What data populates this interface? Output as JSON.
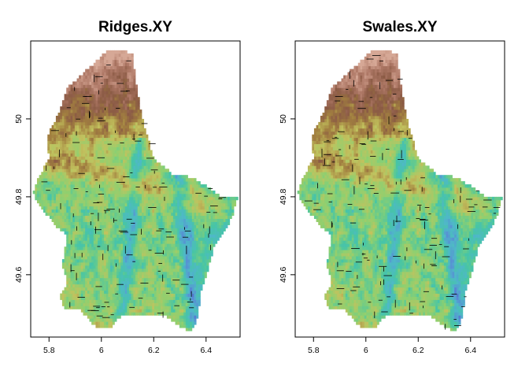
{
  "chart_data": [
    {
      "type": "heatmap",
      "title": "Ridges.XY",
      "xlabel": "",
      "ylabel": "",
      "xlim": [
        5.73,
        6.53
      ],
      "ylim": [
        49.44,
        50.2
      ],
      "xticks": [
        "5.8",
        "6",
        "6.2",
        "6.4"
      ],
      "xtick_values": [
        5.8,
        6.0,
        6.2,
        6.4
      ],
      "yticks": [
        "49.6",
        "49.8",
        "50"
      ],
      "ytick_values": [
        49.6,
        49.8,
        50.0
      ],
      "colormap": [
        "#3f4fb8",
        "#5a86d6",
        "#4fb8c8",
        "#47c5a5",
        "#8ed070",
        "#c2c25e",
        "#a28040",
        "#8a5a44",
        "#b07a68",
        "#d6a896"
      ],
      "overlay": "short black ridge-line segments",
      "region_outline": [
        [
          6.03,
          50.18
        ],
        [
          6.12,
          50.17
        ],
        [
          6.13,
          50.1
        ],
        [
          6.16,
          49.99
        ],
        [
          6.2,
          49.9
        ],
        [
          6.27,
          49.86
        ],
        [
          6.35,
          49.85
        ],
        [
          6.46,
          49.8
        ],
        [
          6.52,
          49.8
        ],
        [
          6.5,
          49.75
        ],
        [
          6.47,
          49.71
        ],
        [
          6.43,
          49.67
        ],
        [
          6.41,
          49.62
        ],
        [
          6.38,
          49.56
        ],
        [
          6.37,
          49.5
        ],
        [
          6.35,
          49.46
        ],
        [
          6.32,
          49.46
        ],
        [
          6.23,
          49.5
        ],
        [
          6.14,
          49.5
        ],
        [
          6.08,
          49.5
        ],
        [
          6.03,
          49.46
        ],
        [
          5.97,
          49.47
        ],
        [
          5.92,
          49.51
        ],
        [
          5.86,
          49.51
        ],
        [
          5.84,
          49.55
        ],
        [
          5.87,
          49.58
        ],
        [
          5.85,
          49.63
        ],
        [
          5.87,
          49.7
        ],
        [
          5.82,
          49.73
        ],
        [
          5.76,
          49.78
        ],
        [
          5.74,
          49.81
        ],
        [
          5.76,
          49.85
        ],
        [
          5.8,
          49.9
        ],
        [
          5.79,
          49.95
        ],
        [
          5.84,
          50.02
        ],
        [
          5.87,
          50.08
        ],
        [
          5.95,
          50.13
        ]
      ]
    },
    {
      "type": "heatmap",
      "title": "Swales.XY",
      "xlabel": "",
      "ylabel": "",
      "xlim": [
        5.73,
        6.53
      ],
      "ylim": [
        49.44,
        50.2
      ],
      "xticks": [
        "5.8",
        "6",
        "6.2",
        "6.4"
      ],
      "xtick_values": [
        5.8,
        6.0,
        6.2,
        6.4
      ],
      "yticks": [
        "49.6",
        "49.8",
        "50"
      ],
      "ytick_values": [
        49.6,
        49.8,
        50.0
      ],
      "colormap": [
        "#3f4fb8",
        "#5a86d6",
        "#4fb8c8",
        "#47c5a5",
        "#8ed070",
        "#c2c25e",
        "#a28040",
        "#8a5a44",
        "#b07a68",
        "#d6a896"
      ],
      "overlay": "short black swale-line segments",
      "region_outline": [
        [
          6.03,
          50.18
        ],
        [
          6.12,
          50.17
        ],
        [
          6.13,
          50.1
        ],
        [
          6.16,
          49.99
        ],
        [
          6.2,
          49.9
        ],
        [
          6.27,
          49.86
        ],
        [
          6.35,
          49.85
        ],
        [
          6.46,
          49.8
        ],
        [
          6.52,
          49.8
        ],
        [
          6.5,
          49.75
        ],
        [
          6.47,
          49.71
        ],
        [
          6.43,
          49.67
        ],
        [
          6.41,
          49.62
        ],
        [
          6.38,
          49.56
        ],
        [
          6.37,
          49.5
        ],
        [
          6.35,
          49.46
        ],
        [
          6.32,
          49.46
        ],
        [
          6.23,
          49.5
        ],
        [
          6.14,
          49.5
        ],
        [
          6.08,
          49.5
        ],
        [
          6.03,
          49.46
        ],
        [
          5.97,
          49.47
        ],
        [
          5.92,
          49.51
        ],
        [
          5.86,
          49.51
        ],
        [
          5.84,
          49.55
        ],
        [
          5.87,
          49.58
        ],
        [
          5.85,
          49.63
        ],
        [
          5.87,
          49.7
        ],
        [
          5.82,
          49.73
        ],
        [
          5.76,
          49.78
        ],
        [
          5.74,
          49.81
        ],
        [
          5.76,
          49.85
        ],
        [
          5.8,
          49.9
        ],
        [
          5.79,
          49.95
        ],
        [
          5.84,
          50.02
        ],
        [
          5.87,
          50.08
        ],
        [
          5.95,
          50.13
        ]
      ]
    }
  ]
}
